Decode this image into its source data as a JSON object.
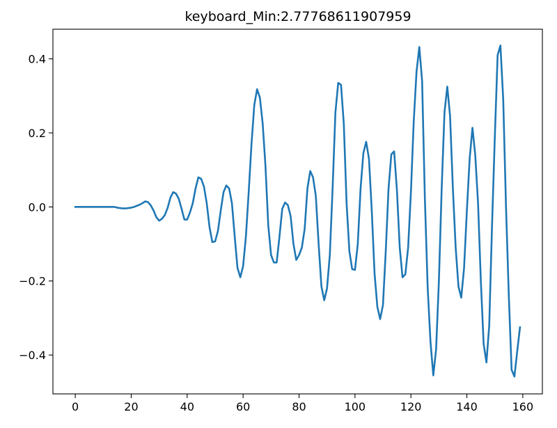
{
  "chart_data": {
    "type": "line",
    "title": "keyboard_Min:2.77768611907959",
    "xlabel": "",
    "ylabel": "",
    "xlim": [
      -8,
      167
    ],
    "ylim": [
      -0.505,
      0.48
    ],
    "xticks": [
      0,
      20,
      40,
      60,
      80,
      100,
      120,
      140,
      160
    ],
    "xtick_labels": [
      "0",
      "20",
      "40",
      "60",
      "80",
      "100",
      "120",
      "140",
      "160"
    ],
    "yticks": [
      -0.4,
      -0.2,
      0.0,
      0.2,
      0.4
    ],
    "ytick_labels": [
      "−0.4",
      "−0.2",
      "0.0",
      "0.2",
      "0.4"
    ],
    "grid": false,
    "line_color": "#1f77b4",
    "series": [
      {
        "x": [
          0,
          1,
          2,
          3,
          4,
          5,
          6,
          7,
          8,
          9,
          10,
          11,
          12,
          13,
          14,
          15,
          16,
          17,
          18,
          19,
          20,
          21,
          22,
          23,
          24,
          25,
          26,
          27,
          28,
          29,
          30,
          31,
          32,
          33,
          34,
          35,
          36,
          37,
          38,
          39,
          40,
          41,
          42,
          43,
          44,
          45,
          46,
          47,
          48,
          49,
          50,
          51,
          52,
          53,
          54,
          55,
          56,
          57,
          58,
          59,
          60,
          61,
          62,
          63,
          64,
          65,
          66,
          67,
          68,
          69,
          70,
          71,
          72,
          73,
          74,
          75,
          76,
          77,
          78,
          79,
          80,
          81,
          82,
          83,
          84,
          85,
          86,
          87,
          88,
          89,
          90,
          91,
          92,
          93,
          94,
          95,
          96,
          97,
          98,
          99,
          100,
          101,
          102,
          103,
          104,
          105,
          106,
          107,
          108,
          109,
          110,
          111,
          112,
          113,
          114,
          115,
          116,
          117,
          118,
          119,
          120,
          121,
          122,
          123,
          124,
          125,
          126,
          127,
          128,
          129,
          130,
          131,
          132,
          133,
          134,
          135,
          136,
          137,
          138,
          139,
          140,
          141,
          142,
          143,
          144,
          145,
          146,
          147,
          148,
          149,
          150,
          151,
          152,
          153,
          154,
          155,
          156,
          157,
          158,
          159
        ],
        "values": [
          0.0,
          0.0,
          0.0,
          0.0,
          0.0,
          0.0,
          0.0,
          0.0,
          0.0,
          0.0,
          0.0,
          0.0,
          0.0,
          0.0,
          0.0,
          -0.002,
          -0.003,
          -0.004,
          -0.004,
          -0.003,
          -0.002,
          0.0,
          0.003,
          0.006,
          0.01,
          0.015,
          0.013,
          0.004,
          -0.01,
          -0.028,
          -0.037,
          -0.032,
          -0.022,
          -0.003,
          0.025,
          0.04,
          0.036,
          0.022,
          -0.005,
          -0.034,
          -0.034,
          -0.015,
          0.01,
          0.05,
          0.08,
          0.076,
          0.055,
          0.01,
          -0.055,
          -0.095,
          -0.093,
          -0.065,
          -0.01,
          0.04,
          0.058,
          0.05,
          0.01,
          -0.08,
          -0.165,
          -0.19,
          -0.16,
          -0.08,
          0.04,
          0.17,
          0.275,
          0.318,
          0.295,
          0.225,
          0.11,
          -0.05,
          -0.13,
          -0.15,
          -0.15,
          -0.08,
          -0.005,
          0.012,
          0.005,
          -0.025,
          -0.1,
          -0.143,
          -0.13,
          -0.11,
          -0.06,
          0.05,
          0.097,
          0.08,
          0.03,
          -0.1,
          -0.215,
          -0.252,
          -0.22,
          -0.13,
          0.05,
          0.255,
          0.335,
          0.33,
          0.225,
          0.01,
          -0.12,
          -0.168,
          -0.17,
          -0.1,
          0.05,
          0.145,
          0.176,
          0.13,
          -0.01,
          -0.18,
          -0.27,
          -0.303,
          -0.265,
          -0.12,
          0.05,
          0.142,
          0.15,
          0.045,
          -0.11,
          -0.19,
          -0.182,
          -0.11,
          0.04,
          0.23,
          0.365,
          0.432,
          0.34,
          0.02,
          -0.22,
          -0.365,
          -0.455,
          -0.385,
          -0.2,
          0.05,
          0.255,
          0.325,
          0.245,
          0.05,
          -0.11,
          -0.215,
          -0.245,
          -0.165,
          -0.01,
          0.13,
          0.214,
          0.14,
          0.01,
          -0.2,
          -0.37,
          -0.42,
          -0.32,
          -0.05,
          0.19,
          0.41,
          0.436,
          0.29,
          0.0,
          -0.24,
          -0.44,
          -0.458,
          -0.39,
          -0.325
        ]
      }
    ]
  }
}
